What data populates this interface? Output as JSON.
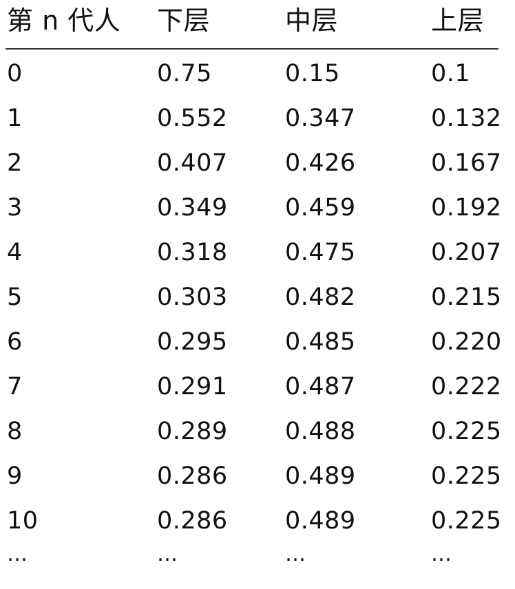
{
  "table": {
    "headers": [
      "第 n 代人",
      "下层",
      "中层",
      "上层"
    ],
    "rows": [
      [
        "0",
        "0.75",
        "0.15",
        "0.1"
      ],
      [
        "1",
        "0.552",
        "0.347",
        "0.132"
      ],
      [
        "2",
        "0.407",
        "0.426",
        "0.167"
      ],
      [
        "3",
        "0.349",
        "0.459",
        "0.192"
      ],
      [
        "4",
        "0.318",
        "0.475",
        "0.207"
      ],
      [
        "5",
        "0.303",
        "0.482",
        "0.215"
      ],
      [
        "6",
        "0.295",
        "0.485",
        "0.220"
      ],
      [
        "7",
        "0.291",
        "0.487",
        "0.222"
      ],
      [
        "8",
        "0.289",
        "0.488",
        "0.225"
      ],
      [
        "9",
        "0.286",
        "0.489",
        "0.225"
      ],
      [
        "10",
        "0.286",
        "0.489",
        "0.225"
      ]
    ],
    "ellipsis": [
      "…",
      "…",
      "…",
      "…"
    ]
  }
}
